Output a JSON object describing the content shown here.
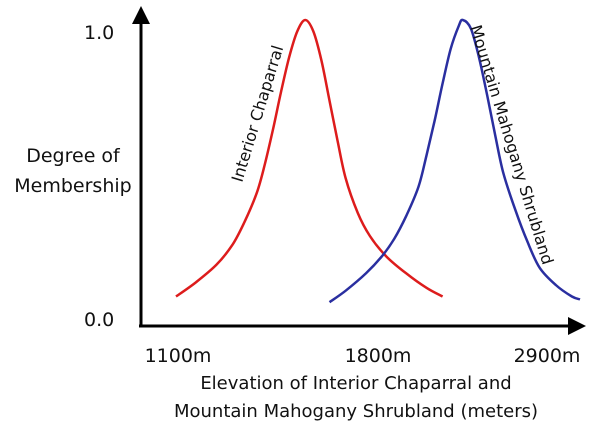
{
  "chart_data": {
    "type": "line",
    "title": "",
    "xlabel": "Elevation of Interior Chaparral and Mountain Mahogany Shrubland (meters)",
    "xlabel_lines": [
      "Elevation of Interior Chaparral and",
      "Mountain Mahogany Shrubland (meters)"
    ],
    "ylabel": "Degree of Membership",
    "ylabel_lines": [
      "Degree of",
      "Membership"
    ],
    "x_ticks": [
      "1100m",
      "1800m",
      "2900m"
    ],
    "y_ticks": [
      "1.0",
      "0.0"
    ],
    "ylim": [
      0,
      1
    ],
    "grid": false,
    "legend": "none",
    "series": [
      {
        "name": "Interior Chaparral",
        "color": "#dd1c1c",
        "points": [
          [
            0.0,
            0.04
          ],
          [
            0.05,
            0.09
          ],
          [
            0.1,
            0.15
          ],
          [
            0.14,
            0.22
          ],
          [
            0.17,
            0.3
          ],
          [
            0.2,
            0.4
          ],
          [
            0.22,
            0.5
          ],
          [
            0.24,
            0.62
          ],
          [
            0.26,
            0.75
          ],
          [
            0.28,
            0.87
          ],
          [
            0.3,
            0.96
          ],
          [
            0.32,
            1.0
          ],
          [
            0.34,
            0.96
          ],
          [
            0.36,
            0.86
          ],
          [
            0.38,
            0.72
          ],
          [
            0.4,
            0.58
          ],
          [
            0.42,
            0.45
          ],
          [
            0.45,
            0.33
          ],
          [
            0.48,
            0.25
          ],
          [
            0.52,
            0.18
          ],
          [
            0.57,
            0.12
          ],
          [
            0.62,
            0.07
          ],
          [
            0.66,
            0.04
          ]
        ]
      },
      {
        "name": "Mountain Mahogany Shrubland",
        "color": "#2a2fa0",
        "points": [
          [
            0.38,
            0.02
          ],
          [
            0.42,
            0.06
          ],
          [
            0.47,
            0.12
          ],
          [
            0.51,
            0.18
          ],
          [
            0.54,
            0.24
          ],
          [
            0.57,
            0.32
          ],
          [
            0.6,
            0.42
          ],
          [
            0.62,
            0.53
          ],
          [
            0.64,
            0.65
          ],
          [
            0.66,
            0.78
          ],
          [
            0.68,
            0.9
          ],
          [
            0.7,
            0.98
          ],
          [
            0.71,
            1.0
          ],
          [
            0.73,
            0.97
          ],
          [
            0.75,
            0.87
          ],
          [
            0.77,
            0.74
          ],
          [
            0.79,
            0.6
          ],
          [
            0.81,
            0.47
          ],
          [
            0.84,
            0.34
          ],
          [
            0.87,
            0.23
          ],
          [
            0.9,
            0.14
          ],
          [
            0.94,
            0.08
          ],
          [
            0.98,
            0.04
          ],
          [
            1.0,
            0.03
          ]
        ]
      }
    ]
  }
}
